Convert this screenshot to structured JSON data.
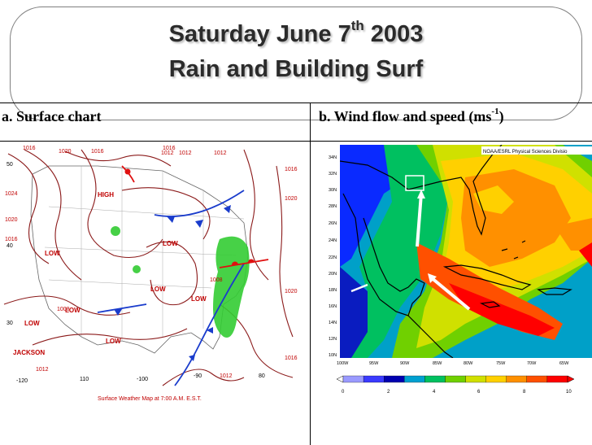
{
  "slide": {
    "title_prefix": "Saturday June 7",
    "title_sup": "th",
    "title_suffix": " 2003",
    "subtitle": "Rain and Building Surf"
  },
  "panels": {
    "a": {
      "label": "a. Surface chart",
      "caption": "Surface Weather Map at 7:00 A.M. E.S.T."
    },
    "b": {
      "label_prefix": "b. Wind flow and speed (ms",
      "label_sup": "-1",
      "label_suffix": ")",
      "credit": "NOAA/ESRL Physical Sciences Divisio"
    }
  },
  "surface_map": {
    "lows": [
      "LOW",
      "LOW",
      "LOW",
      "LOW",
      "LOW",
      "LOW",
      "LOW"
    ],
    "high": "HIGH",
    "city": "JACKSON",
    "isobars": [
      "1016",
      "1020",
      "1016",
      "1012",
      "1012",
      "1016",
      "1020",
      "1024",
      "1020",
      "1016",
      "1016",
      "1020",
      "1012",
      "1008",
      "1012",
      "1016",
      "1012",
      "1008"
    ],
    "lat_labels": [
      "50",
      "40",
      "30"
    ],
    "lon_labels": [
      "-120",
      "110",
      "-100",
      "-90",
      "80"
    ],
    "colors": {
      "isobar": "#8b1a1a",
      "rain": "#33cc33",
      "cold_front": "#1a3ccc",
      "warm_front": "#e01010"
    }
  },
  "wind_map": {
    "lat_labels": [
      "34N",
      "32N",
      "30N",
      "28N",
      "26N",
      "24N",
      "22N",
      "20N",
      "18N",
      "16N",
      "14N",
      "12N",
      "10N"
    ],
    "lon_labels": [
      "100W",
      "95W",
      "90W",
      "85W",
      "80W",
      "75W",
      "70W",
      "65W"
    ],
    "colorbar_ticks": [
      "0",
      "2",
      "4",
      "6",
      "8",
      "10"
    ],
    "colorbar_colors": [
      "#9a9aff",
      "#3a3aff",
      "#0000b0",
      "#00a0d0",
      "#00c060",
      "#70d000",
      "#d0e000",
      "#ffd000",
      "#ff9000",
      "#ff5000",
      "#ff0000"
    ],
    "colors": {
      "land": "#000000",
      "arrow": "#ffffff",
      "highlight_box": "#ffffff"
    }
  }
}
